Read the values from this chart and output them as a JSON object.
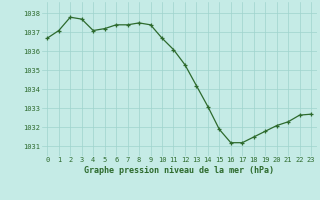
{
  "x": [
    0,
    1,
    2,
    3,
    4,
    5,
    6,
    7,
    8,
    9,
    10,
    11,
    12,
    13,
    14,
    15,
    16,
    17,
    18,
    19,
    20,
    21,
    22,
    23
  ],
  "y": [
    1036.7,
    1037.1,
    1037.8,
    1037.7,
    1037.1,
    1037.2,
    1037.4,
    1037.4,
    1037.5,
    1037.4,
    1036.7,
    1036.1,
    1035.3,
    1034.2,
    1033.1,
    1031.9,
    1031.2,
    1031.2,
    1031.5,
    1031.8,
    1032.1,
    1032.3,
    1032.65,
    1032.7
  ],
  "line_color": "#2d6a2d",
  "marker_color": "#2d6a2d",
  "bg_color": "#c5ebe6",
  "grid_color": "#9fd4cd",
  "xlabel": "Graphe pression niveau de la mer (hPa)",
  "xlabel_color": "#2d6a2d",
  "tick_color": "#2d6a2d",
  "ylim_min": 1030.5,
  "ylim_max": 1038.6,
  "yticks": [
    1031,
    1032,
    1033,
    1034,
    1035,
    1036,
    1037,
    1038
  ],
  "xticks": [
    0,
    1,
    2,
    3,
    4,
    5,
    6,
    7,
    8,
    9,
    10,
    11,
    12,
    13,
    14,
    15,
    16,
    17,
    18,
    19,
    20,
    21,
    22,
    23
  ]
}
